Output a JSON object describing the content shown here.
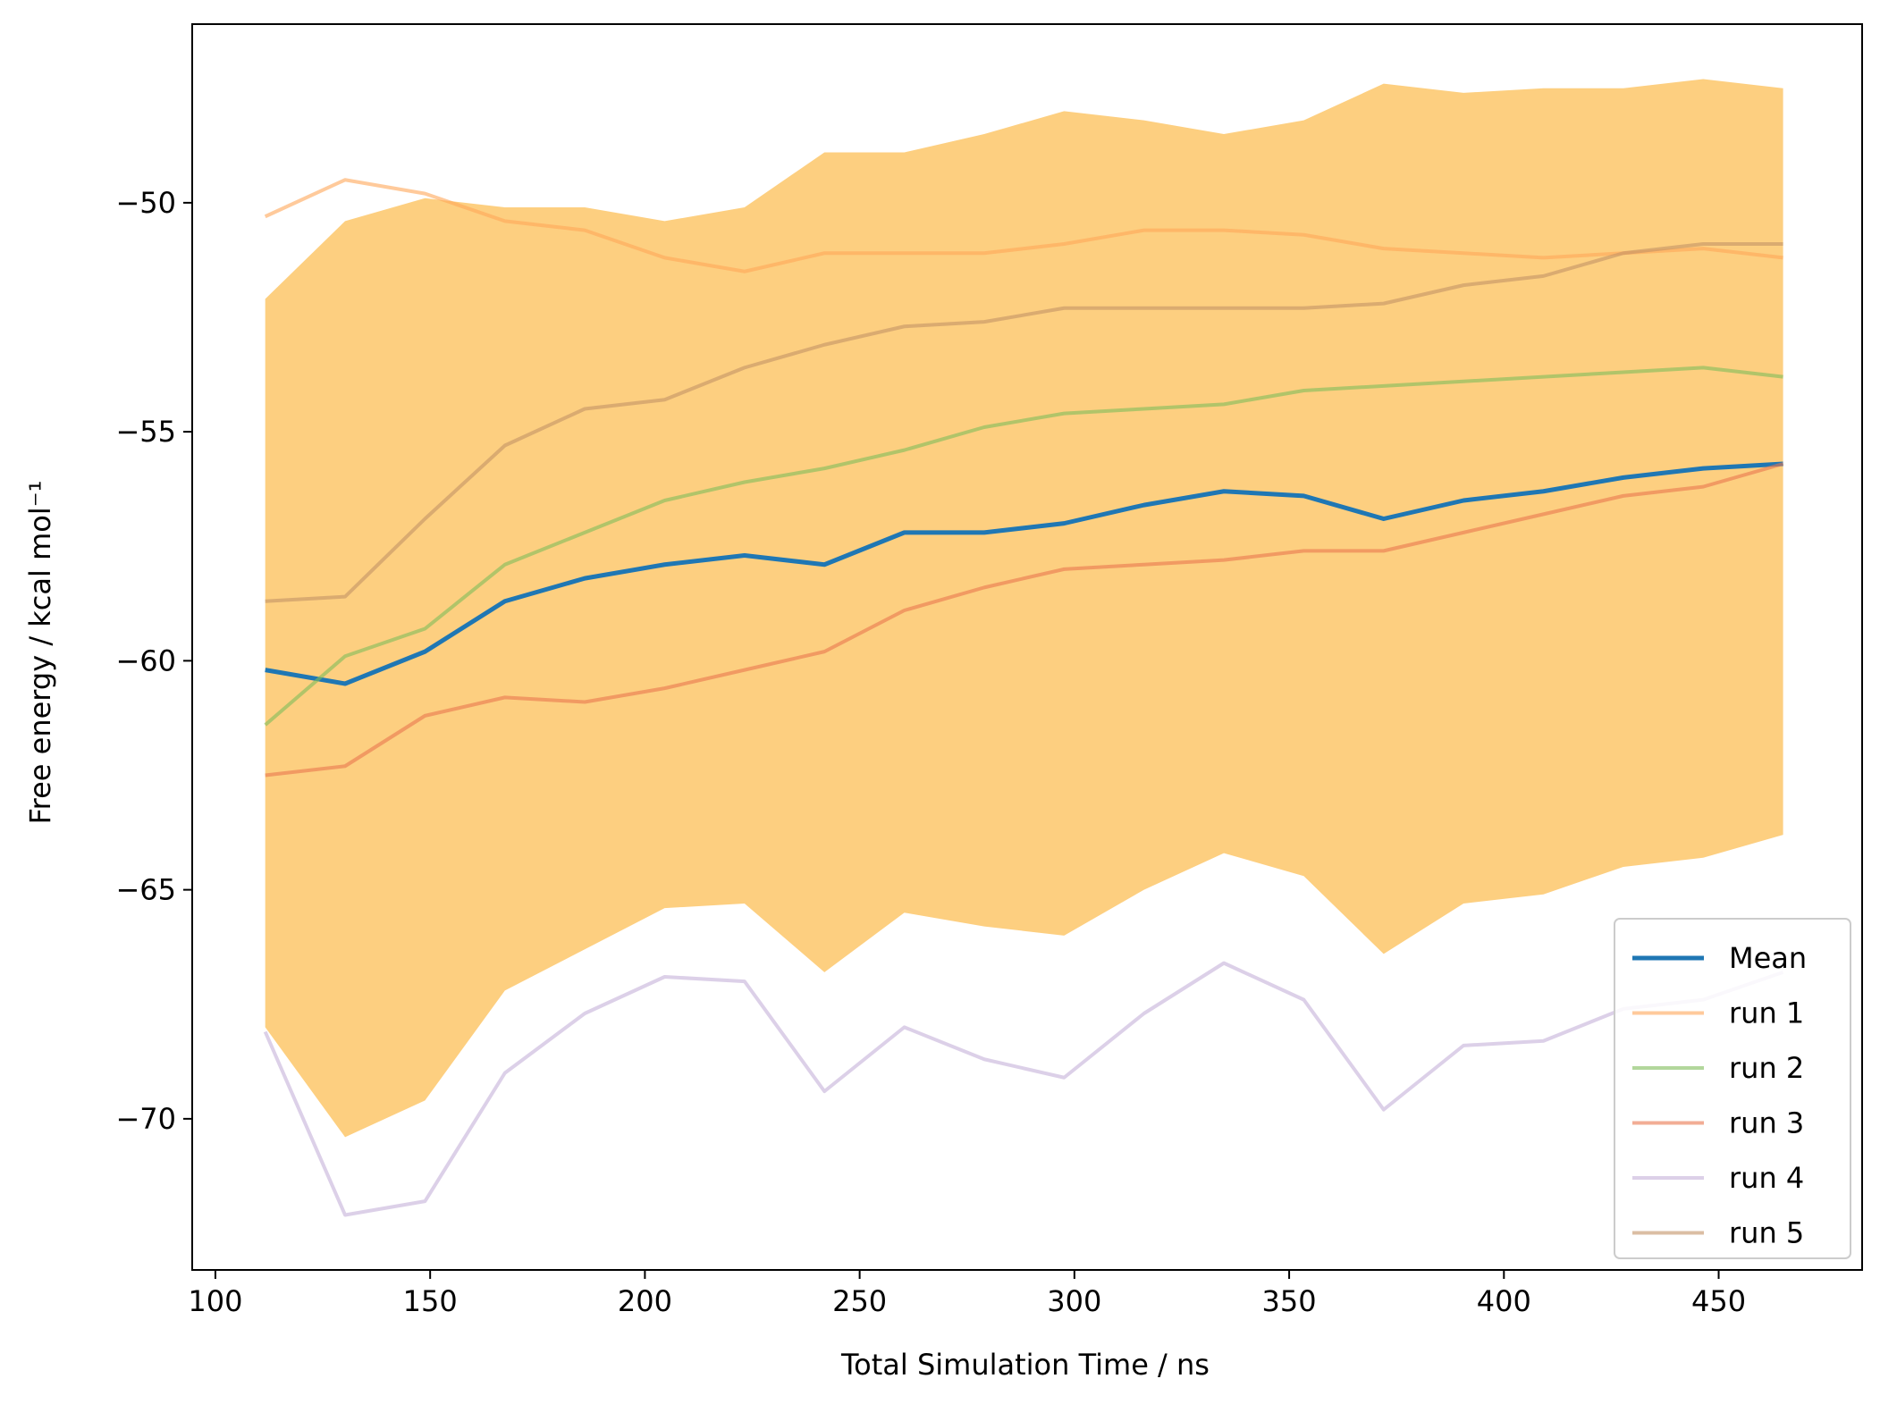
{
  "chart_data": {
    "type": "line",
    "xlabel": "Total Simulation Time / ns",
    "ylabel": "Free energy / kcal mol⁻¹",
    "xlim": [
      94.6,
      483.4
    ],
    "ylim": [
      -73.3,
      -46.1
    ],
    "xticks": [
      100,
      150,
      200,
      250,
      300,
      350,
      400,
      450
    ],
    "xtick_labels": [
      "100",
      "150",
      "200",
      "250",
      "300",
      "350",
      "400",
      "450"
    ],
    "yticks": [
      -50,
      -55,
      -60,
      -65,
      -70
    ],
    "ytick_labels": [
      "−50",
      "−55",
      "−60",
      "−65",
      "−70"
    ],
    "x": [
      111.6,
      130.2,
      148.8,
      167.4,
      186,
      204.6,
      223.2,
      241.8,
      260.4,
      279,
      297.6,
      316.2,
      334.8,
      353.4,
      372,
      390.6,
      409.2,
      427.8,
      446.4,
      465
    ],
    "band": {
      "upper": [
        -52.1,
        -50.4,
        -49.9,
        -50.1,
        -50.1,
        -50.4,
        -50.1,
        -48.9,
        -48.9,
        -48.5,
        -48.0,
        -48.2,
        -48.5,
        -48.2,
        -47.4,
        -47.6,
        -47.5,
        -47.5,
        -47.3,
        -47.5
      ],
      "lower": [
        -68.0,
        -70.4,
        -69.6,
        -67.2,
        -66.3,
        -65.4,
        -65.3,
        -66.8,
        -65.5,
        -65.8,
        -66.0,
        -65.0,
        -64.2,
        -64.7,
        -66.4,
        -65.3,
        -65.1,
        -64.5,
        -64.3,
        -63.8
      ],
      "color": "#fdcf80"
    },
    "series": [
      {
        "name": "Mean",
        "color": "#1f77b4",
        "values": [
          -60.2,
          -60.5,
          -59.8,
          -58.7,
          -58.2,
          -57.9,
          -57.7,
          -57.9,
          -57.2,
          -57.2,
          -57.0,
          -56.6,
          -56.3,
          -56.4,
          -56.9,
          -56.5,
          -56.3,
          -56.0,
          -55.8,
          -55.7
        ]
      },
      {
        "name": "run 1",
        "color": "#ffa758",
        "values": [
          -50.3,
          -49.5,
          -49.8,
          -50.4,
          -50.6,
          -51.2,
          -51.5,
          -51.1,
          -51.1,
          -51.1,
          -50.9,
          -50.6,
          -50.6,
          -50.7,
          -51.0,
          -51.1,
          -51.2,
          -51.1,
          -51.0,
          -51.2
        ]
      },
      {
        "name": "run 2",
        "color": "#8fc97e",
        "values": [
          -61.4,
          -59.9,
          -59.3,
          -57.9,
          -57.2,
          -56.5,
          -56.1,
          -55.8,
          -55.4,
          -54.9,
          -54.6,
          -54.5,
          -54.4,
          -54.1,
          -54.0,
          -53.9,
          -53.8,
          -53.7,
          -53.6,
          -53.8
        ]
      },
      {
        "name": "run 3",
        "color": "#ea8a7e",
        "values": [
          -62.5,
          -62.3,
          -61.2,
          -60.8,
          -60.9,
          -60.6,
          -60.2,
          -59.8,
          -58.9,
          -58.4,
          -58.0,
          -57.9,
          -57.8,
          -57.6,
          -57.6,
          -57.2,
          -56.8,
          -56.4,
          -56.2,
          -55.7
        ]
      },
      {
        "name": "run 4",
        "color": "#c6b0d8",
        "values": [
          -68.1,
          -72.1,
          -71.8,
          -69.0,
          -67.7,
          -66.9,
          -67.0,
          -69.4,
          -68.0,
          -68.7,
          -69.1,
          -67.7,
          -66.6,
          -67.4,
          -69.8,
          -68.4,
          -68.3,
          -67.6,
          -67.4,
          -66.8
        ]
      },
      {
        "name": "run 5",
        "color": "#c49c88",
        "values": [
          -58.7,
          -58.6,
          -56.9,
          -55.3,
          -54.5,
          -54.3,
          -53.6,
          -53.1,
          -52.7,
          -52.6,
          -52.3,
          -52.3,
          -52.3,
          -52.3,
          -52.2,
          -51.8,
          -51.6,
          -51.1,
          -50.9,
          -50.9
        ]
      }
    ],
    "overlay": {
      "Mean": "#1f77b4",
      "run 1": "#ffa658",
      "run 2": "#7ebd5a",
      "run 3": "#e9774f",
      "run 4": "#c5b0d8",
      "run 5": "#c39365"
    },
    "legend": "bottom-right"
  }
}
